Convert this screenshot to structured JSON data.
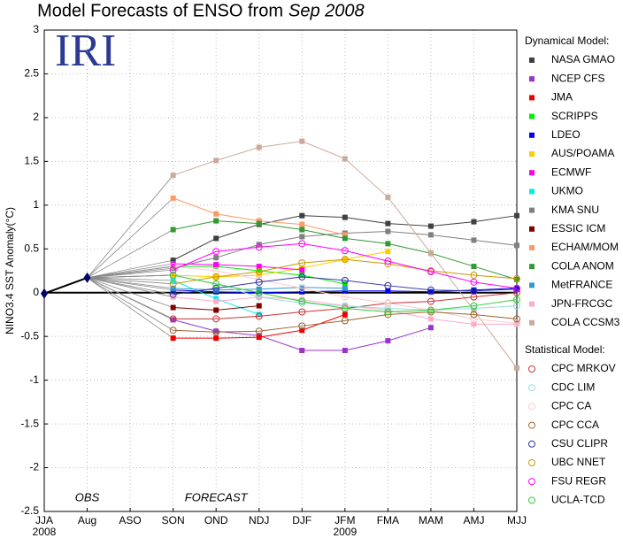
{
  "chart_data": {
    "type": "line",
    "title": "Model Forecasts of ENSO from",
    "title_date": "Sep 2008",
    "logo": "IRI",
    "ylabel": "NINO3.4 SST Anomaly(°C)",
    "categories": [
      "JJA",
      "Aug",
      "ASO",
      "SON",
      "OND",
      "NDJ",
      "DJF",
      "JFM",
      "FMA",
      "MAM",
      "AMJ",
      "MJJ"
    ],
    "x_year_labels": [
      "2008",
      null,
      null,
      null,
      null,
      null,
      null,
      "2009",
      null,
      null,
      null,
      null
    ],
    "ylim": [
      -2.5,
      3
    ],
    "yticks": [
      -2.5,
      -2,
      -1.5,
      -1,
      -0.5,
      0,
      0.5,
      1,
      1.5,
      2,
      2.5,
      3
    ],
    "grid": true,
    "reference_line": 0,
    "annotations": [
      {
        "text": "OBS",
        "category": "Aug"
      },
      {
        "text": "FORECAST",
        "category": "OND"
      }
    ],
    "observed": {
      "color": "#000000",
      "values": [
        -0.01,
        0.17,
        null,
        null,
        null,
        null,
        null,
        null,
        null,
        null,
        null,
        null
      ]
    },
    "connector_color": "#888888",
    "legend_groups": [
      {
        "title": "Dynamical Model:",
        "marker": "square"
      },
      {
        "title": "Statistical Model:",
        "marker": "circle"
      }
    ],
    "series": [
      {
        "name": "NASA GMAO",
        "group": 0,
        "color": "#404040",
        "values": [
          null,
          null,
          null,
          0.37,
          0.62,
          0.78,
          0.88,
          0.86,
          0.79,
          0.76,
          0.81,
          0.88
        ]
      },
      {
        "name": "NCEP CFS",
        "group": 0,
        "color": "#9933cc",
        "values": [
          null,
          null,
          null,
          -0.31,
          -0.44,
          -0.49,
          -0.66,
          -0.66,
          -0.55,
          -0.4,
          null,
          null
        ]
      },
      {
        "name": "JMA",
        "group": 0,
        "color": "#ee0000",
        "values": [
          null,
          null,
          null,
          -0.52,
          -0.52,
          -0.51,
          -0.43,
          -0.25,
          null,
          null,
          null,
          null
        ]
      },
      {
        "name": "SCRIPPS",
        "group": 0,
        "color": "#00ee00",
        "values": [
          null,
          null,
          null,
          0.3,
          0.3,
          0.25,
          0.2,
          0.1,
          null,
          null,
          null,
          null
        ]
      },
      {
        "name": "LDEO",
        "group": 0,
        "color": "#0000ee",
        "values": [
          null,
          null,
          null,
          0.03,
          0.01,
          0.0,
          0.01,
          0.02,
          0.02,
          0.01,
          0.03,
          0.05
        ]
      },
      {
        "name": "AUS/POAMA",
        "group": 0,
        "color": "#ffcc00",
        "values": [
          null,
          null,
          null,
          0.2,
          0.18,
          0.2,
          0.28,
          0.38,
          0.47,
          null,
          null,
          null
        ]
      },
      {
        "name": "ECMWF",
        "group": 0,
        "color": "#ff00ee",
        "values": [
          null,
          null,
          null,
          0.33,
          0.32,
          0.3,
          0.26,
          null,
          null,
          null,
          null,
          null
        ]
      },
      {
        "name": "UKMO",
        "group": 0,
        "color": "#00eeee",
        "values": [
          null,
          null,
          null,
          0.14,
          -0.07,
          -0.25,
          null,
          null,
          null,
          null,
          null,
          null
        ]
      },
      {
        "name": "KMA SNU",
        "group": 0,
        "color": "#808080",
        "values": [
          null,
          null,
          null,
          0.28,
          0.4,
          0.55,
          0.64,
          0.68,
          0.7,
          0.66,
          0.6,
          0.54
        ]
      },
      {
        "name": "ESSIC ICM",
        "group": 0,
        "color": "#800000",
        "values": [
          null,
          null,
          null,
          -0.17,
          -0.2,
          -0.15,
          null,
          null,
          null,
          null,
          null,
          null
        ]
      },
      {
        "name": "ECHAM/MOM",
        "group": 0,
        "color": "#ff9966",
        "values": [
          null,
          null,
          null,
          1.08,
          0.9,
          0.82,
          0.78,
          0.66,
          null,
          null,
          null,
          null
        ]
      },
      {
        "name": "COLA ANOM",
        "group": 0,
        "color": "#339933",
        "values": [
          null,
          null,
          null,
          0.72,
          0.82,
          0.79,
          0.72,
          0.62,
          0.56,
          0.45,
          0.3,
          0.15
        ]
      },
      {
        "name": "MetFRANCE",
        "group": 0,
        "color": "#3399cc",
        "values": [
          null,
          null,
          null,
          0.05,
          0.03,
          0.04,
          0.06,
          0.05,
          null,
          null,
          null,
          null
        ]
      },
      {
        "name": "JPN-FRCGC",
        "group": 0,
        "color": "#ffaacc",
        "values": [
          null,
          null,
          null,
          -0.05,
          -0.1,
          -0.05,
          -0.08,
          -0.15,
          -0.2,
          -0.3,
          -0.36,
          -0.36
        ]
      },
      {
        "name": "COLA CCSM3",
        "group": 0,
        "color": "#ccaa99",
        "values": [
          null,
          null,
          null,
          1.34,
          1.51,
          1.66,
          1.73,
          1.53,
          1.09,
          0.45,
          -0.2,
          -0.86
        ]
      },
      {
        "name": "CPC MRKOV",
        "group": 1,
        "color": "#cc3333",
        "values": [
          null,
          null,
          null,
          -0.3,
          -0.3,
          -0.27,
          -0.22,
          -0.18,
          -0.12,
          -0.1,
          -0.05,
          0.0
        ]
      },
      {
        "name": "CDC LIM",
        "group": 1,
        "color": "#99dddd",
        "values": [
          null,
          null,
          null,
          0.2,
          0.1,
          -0.05,
          -0.12,
          -0.15,
          -0.18,
          -0.2,
          -0.18,
          -0.15
        ]
      },
      {
        "name": "CPC CA",
        "group": 1,
        "color": "#ffcccc",
        "values": [
          null,
          null,
          null,
          0.3,
          0.25,
          0.15,
          0.05,
          -0.05,
          -0.12,
          -0.2,
          -0.3,
          -0.35
        ]
      },
      {
        "name": "CPC CCA",
        "group": 1,
        "color": "#996633",
        "values": [
          null,
          null,
          null,
          -0.43,
          -0.45,
          -0.44,
          -0.38,
          -0.32,
          -0.25,
          -0.22,
          -0.25,
          -0.3
        ]
      },
      {
        "name": "CSU CLIPR",
        "group": 1,
        "color": "#3333aa",
        "values": [
          null,
          null,
          null,
          -0.02,
          0.05,
          0.12,
          0.18,
          0.14,
          0.08,
          0.03,
          0.02,
          0.04
        ]
      },
      {
        "name": "UBC NNET",
        "group": 1,
        "color": "#cc9900",
        "values": [
          null,
          null,
          null,
          0.1,
          0.18,
          0.24,
          0.34,
          0.38,
          0.33,
          0.25,
          0.2,
          0.16
        ]
      },
      {
        "name": "FSU REGR",
        "group": 1,
        "color": "#ff00ff",
        "values": [
          null,
          null,
          null,
          0.26,
          0.47,
          0.52,
          0.56,
          0.48,
          0.36,
          0.24,
          0.12,
          0.05
        ]
      },
      {
        "name": "UCLA-TCD",
        "group": 1,
        "color": "#33cc33",
        "values": [
          null,
          null,
          null,
          0.2,
          0.1,
          0.0,
          -0.1,
          -0.18,
          -0.22,
          -0.2,
          -0.15,
          -0.08
        ]
      }
    ]
  }
}
